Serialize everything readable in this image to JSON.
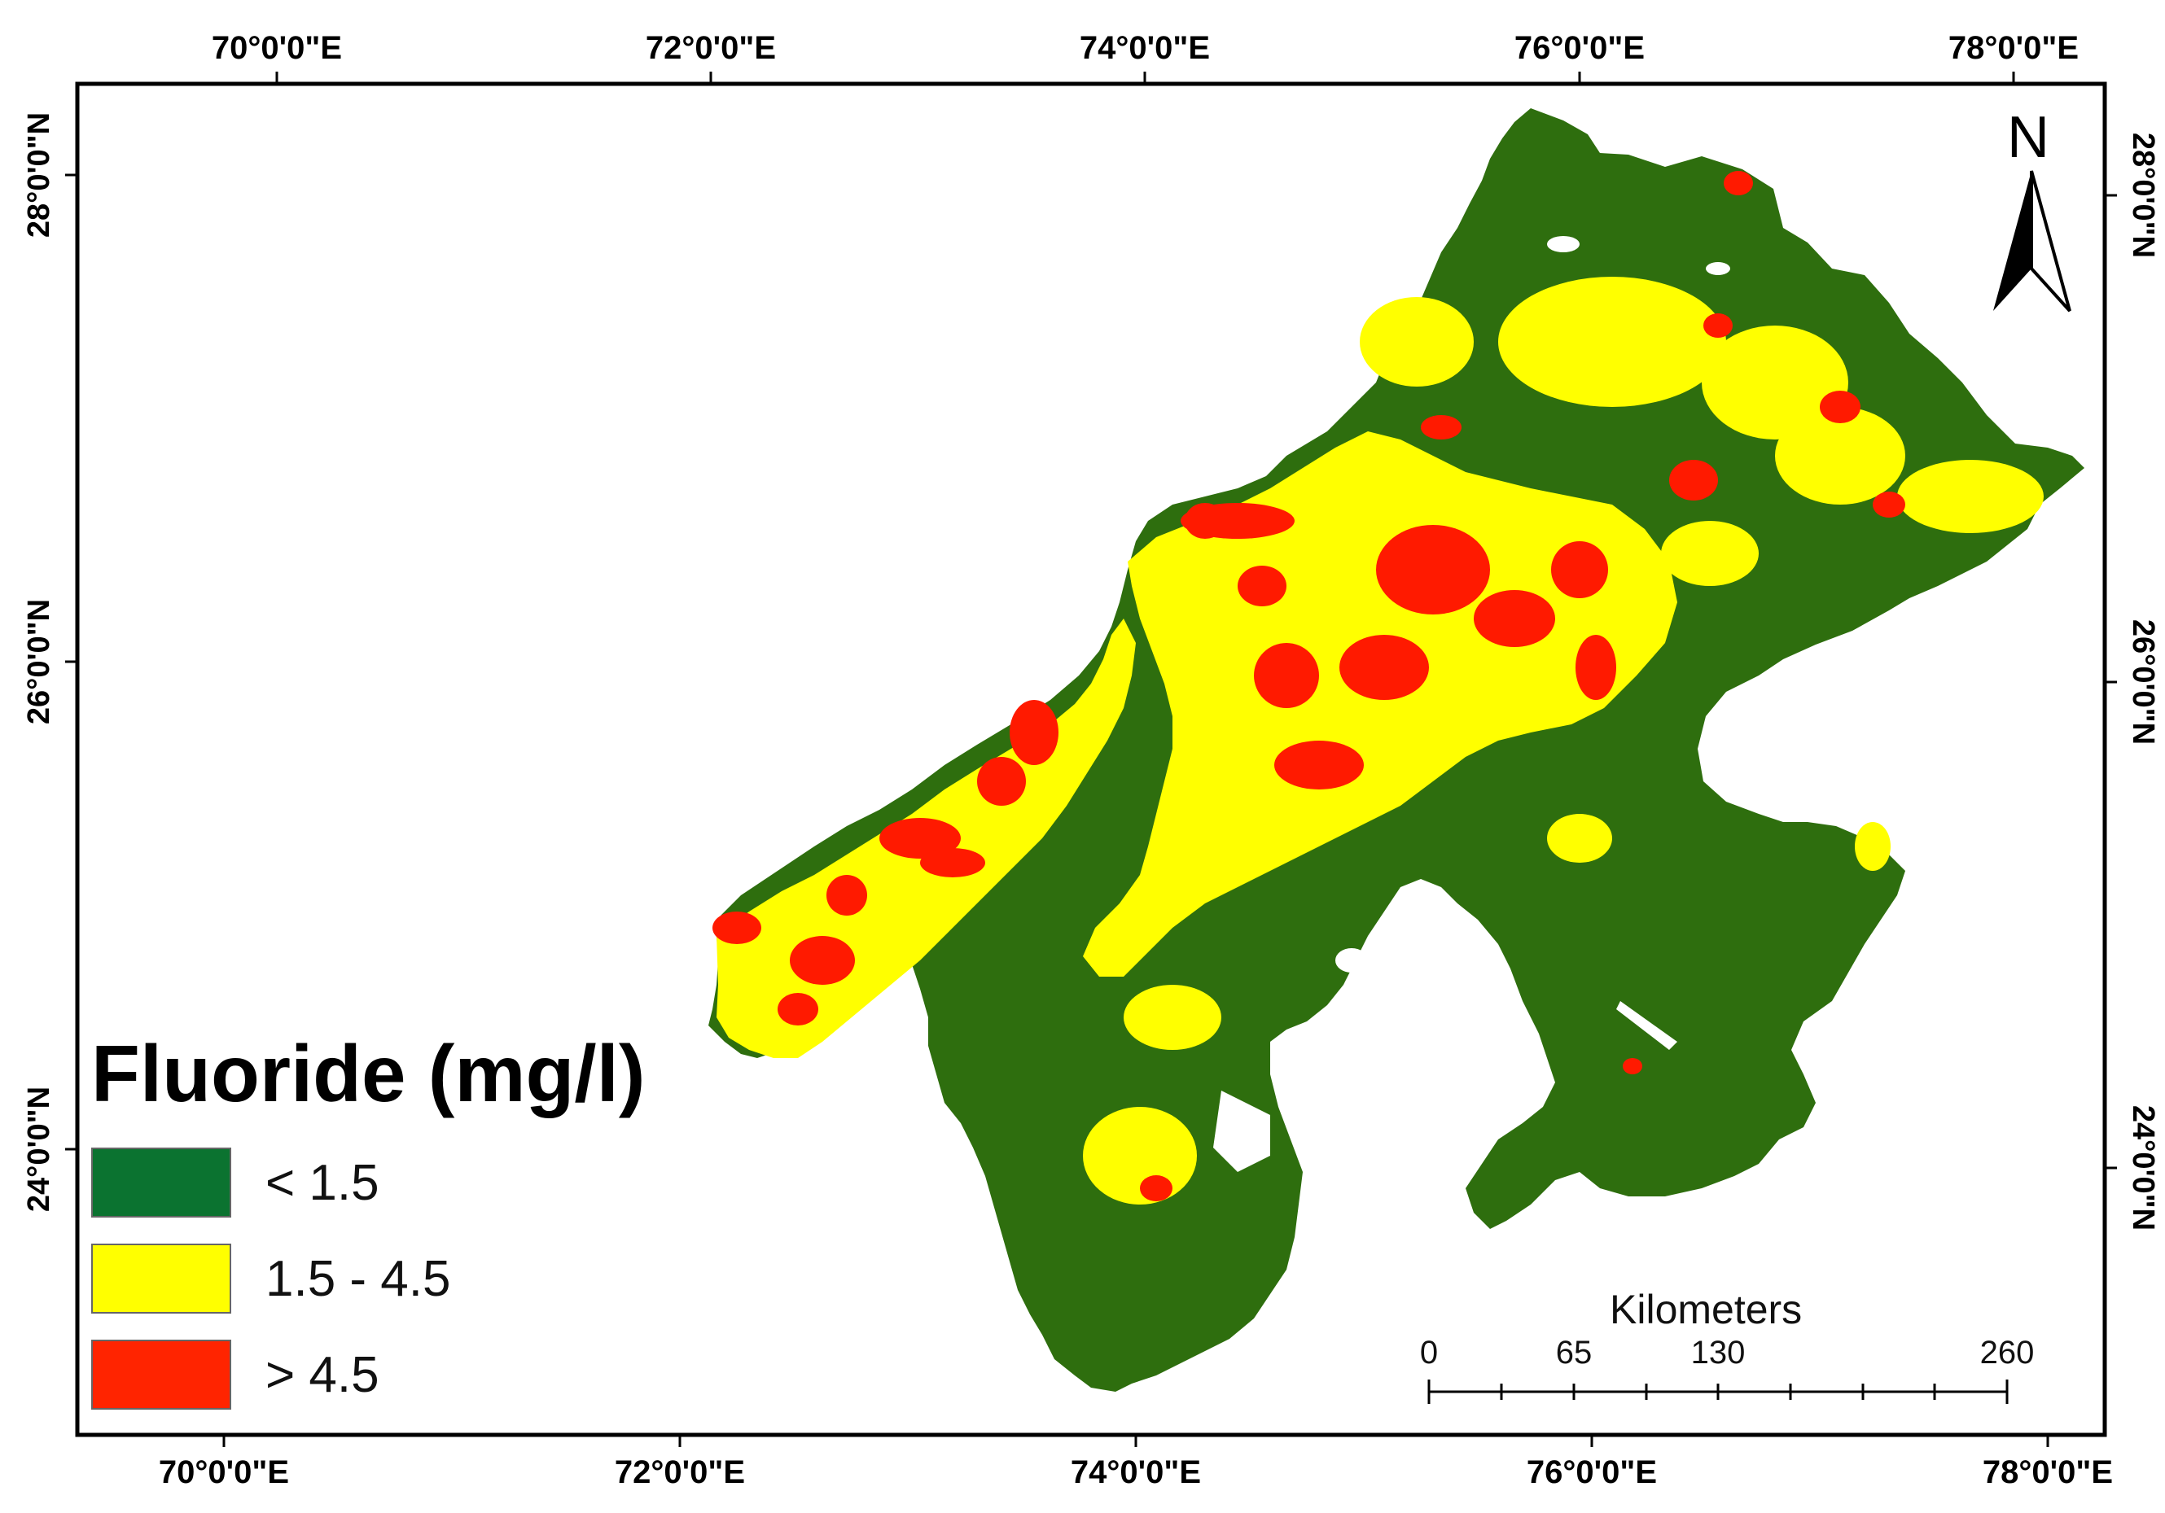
{
  "map": {
    "top_ticks": [
      "70°0'0\"E",
      "72°0'0\"E",
      "74°0'0\"E",
      "76°0'0\"E",
      "78°0'0\"E"
    ],
    "bottom_ticks": [
      "70°0'0\"E",
      "72°0'0\"E",
      "74°0'0\"E",
      "76°0'0\"E",
      "78°0'0\"E"
    ],
    "left_ticks": [
      "28°0'0\"N",
      "26°0'0\"N",
      "24°0'0\"N"
    ],
    "right_ticks": [
      "28°0'0\"N",
      "26°0'0\"N",
      "24°0'0\"N"
    ],
    "class_colors": {
      "low": "#2e6e0e",
      "mid": "#ffff00",
      "high": "#ff1a00"
    }
  },
  "legend": {
    "title": "Fluoride (mg/l)",
    "items": [
      {
        "label": "< 1.5",
        "color": "#0b7330"
      },
      {
        "label": "1.5 - 4.5",
        "color": "#ffff00"
      },
      {
        "label": "> 4.5",
        "color": "#ff2400"
      }
    ]
  },
  "north_arrow": {
    "label": "N",
    "icon": "north-arrow-icon"
  },
  "scale_bar": {
    "title": "Kilometers",
    "labels": [
      "0",
      "65",
      "130",
      "260"
    ]
  }
}
